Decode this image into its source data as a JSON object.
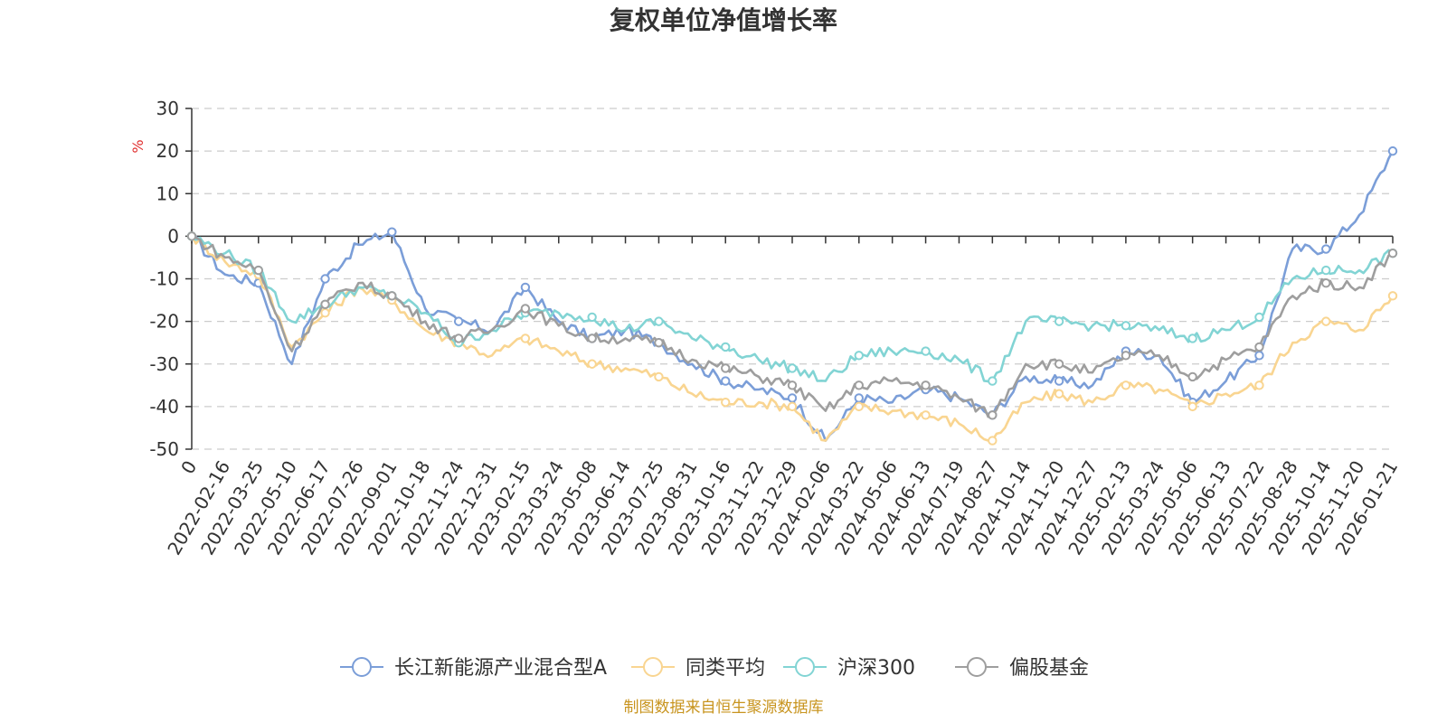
{
  "chart_data": {
    "type": "line",
    "title": "复权单位净值增长率",
    "ylabel": "%",
    "ylim": [
      -50,
      30
    ],
    "yticks": [
      30,
      20,
      10,
      0,
      -10,
      -20,
      -30,
      -40,
      -50
    ],
    "grid": true,
    "legend_position": "bottom",
    "categories": [
      "0",
      "2022-02-16",
      "2022-03-25",
      "2022-05-10",
      "2022-06-17",
      "2022-07-26",
      "2022-09-01",
      "2022-10-18",
      "2022-11-24",
      "2022-12-31",
      "2023-02-15",
      "2023-03-24",
      "2023-05-08",
      "2023-06-14",
      "2023-07-25",
      "2023-08-31",
      "2023-10-16",
      "2023-11-22",
      "2023-12-29",
      "2024-02-06",
      "2024-03-22",
      "2024-05-06",
      "2024-06-13",
      "2024-07-19",
      "2024-08-27",
      "2024-10-14",
      "2024-11-20",
      "2024-12-27",
      "2025-02-13",
      "2025-03-24",
      "2025-05-06",
      "2025-06-13",
      "2025-07-22",
      "2025-08-28",
      "2025-10-14",
      "2025-11-20",
      "2026-01-21"
    ],
    "series": [
      {
        "name": "长江新能源产业混合型A",
        "color": "#7b9ed8",
        "values": [
          0,
          -9,
          -11,
          -30,
          -10,
          -2,
          1,
          -17,
          -20,
          -22,
          -12,
          -20,
          -24,
          -22,
          -25,
          -30,
          -34,
          -36,
          -38,
          -48,
          -38,
          -39,
          -36,
          -38,
          -42,
          -33,
          -34,
          -35,
          -27,
          -28,
          -39,
          -34,
          -28,
          -3,
          -3,
          5,
          20
        ]
      },
      {
        "name": "同类平均",
        "color": "#f9d591",
        "values": [
          0,
          -6,
          -9,
          -26,
          -18,
          -12,
          -15,
          -22,
          -25,
          -28,
          -24,
          -27,
          -30,
          -31,
          -33,
          -37,
          -39,
          -39,
          -40,
          -48,
          -40,
          -41,
          -42,
          -44,
          -48,
          -39,
          -37,
          -39,
          -35,
          -36,
          -40,
          -37,
          -35,
          -25,
          -20,
          -22,
          -14
        ]
      },
      {
        "name": "沪深300",
        "color": "#82d4d4",
        "values": [
          0,
          -4,
          -8,
          -20,
          -16,
          -12,
          -14,
          -18,
          -25,
          -22,
          -18,
          -18,
          -19,
          -22,
          -20,
          -24,
          -26,
          -29,
          -31,
          -34,
          -28,
          -27,
          -27,
          -29,
          -34,
          -20,
          -20,
          -21,
          -21,
          -22,
          -24,
          -22,
          -19,
          -10,
          -8,
          -8,
          -4
        ]
      },
      {
        "name": "偏股基金",
        "color": "#9e9e9e",
        "values": [
          0,
          -5,
          -8,
          -27,
          -16,
          -11,
          -14,
          -20,
          -24,
          -22,
          -17,
          -21,
          -24,
          -24,
          -25,
          -29,
          -31,
          -33,
          -35,
          -41,
          -35,
          -34,
          -35,
          -38,
          -42,
          -30,
          -30,
          -32,
          -28,
          -28,
          -33,
          -29,
          -26,
          -14,
          -11,
          -12,
          -4
        ]
      }
    ]
  },
  "source_note": "制图数据来自恒生聚源数据库"
}
